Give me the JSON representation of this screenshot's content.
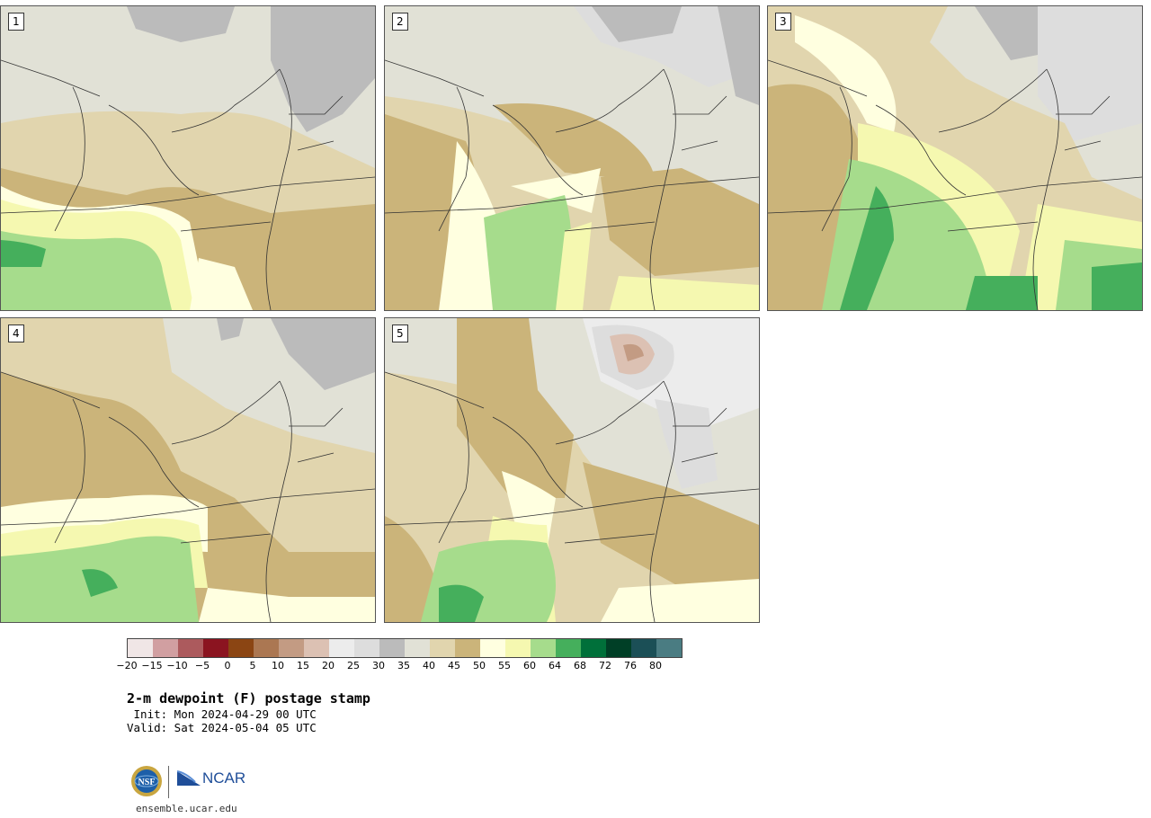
{
  "panels": [
    {
      "label": "1",
      "variant": 1
    },
    {
      "label": "2",
      "variant": 2
    },
    {
      "label": "3",
      "variant": 3
    },
    {
      "label": "4",
      "variant": 4
    },
    {
      "label": "5",
      "variant": 5
    }
  ],
  "colorbar": {
    "colors": [
      "#f0e6e6",
      "#d19fa1",
      "#ac5a5d",
      "#8b1420",
      "#8b4513",
      "#ab7752",
      "#c39b83",
      "#dcc1b3",
      "#ececec",
      "#dddddd",
      "#bbbbbb",
      "#e1e1d6",
      "#e1d5ae",
      "#cbb47a",
      "#ffffe0",
      "#f5f8b0",
      "#a6dc8c",
      "#45af5c",
      "#00703a",
      "#003f26",
      "#1b4f56",
      "#4a7c82"
    ],
    "ticks": [
      "−20",
      "−15",
      "−10",
      "−5",
      "0",
      "5",
      "10",
      "15",
      "20",
      "25",
      "30",
      "35",
      "40",
      "45",
      "50",
      "55",
      "60",
      "64",
      "68",
      "72",
      "76",
      "80"
    ]
  },
  "title": "2-m dewpoint (F) postage stamp",
  "init": " Init: Mon 2024-04-29 00 UTC",
  "valid": "Valid: Sat 2024-05-04 05 UTC",
  "logos": {
    "nsf": "NSF",
    "ncar": "NCAR"
  },
  "website": "ensemble.ucar.edu"
}
